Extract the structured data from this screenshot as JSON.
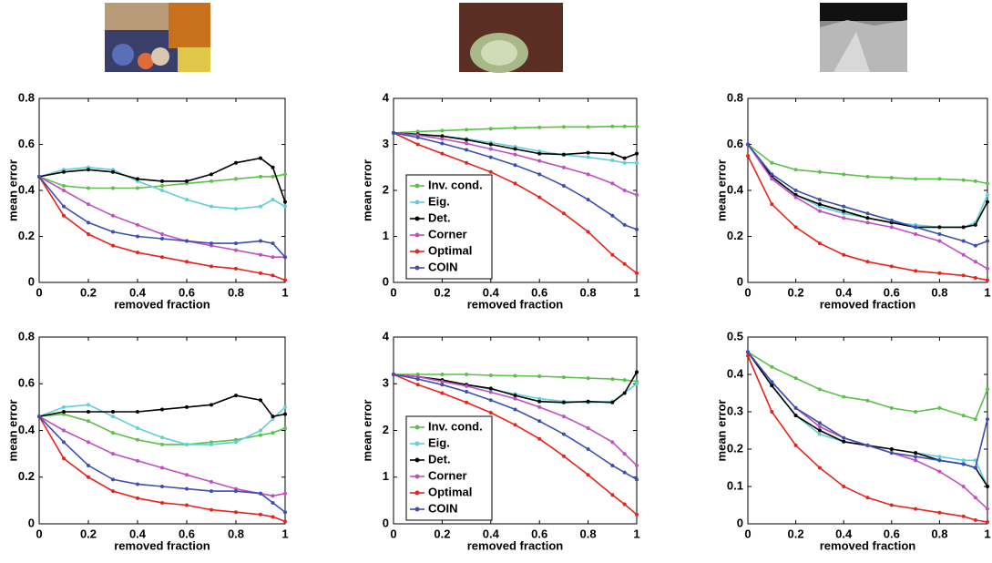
{
  "chart_data": [
    {
      "type": "line",
      "xlabel": "removed fraction",
      "ylabel": "mean error",
      "xlim": [
        0,
        1
      ],
      "xticks": [
        0,
        0.2,
        0.4,
        0.6,
        0.8,
        1
      ],
      "ylim": [
        0,
        0.8
      ],
      "yticks": [
        0,
        0.2,
        0.4,
        0.6,
        0.8
      ],
      "x": [
        0,
        0.1,
        0.2,
        0.3,
        0.4,
        0.5,
        0.6,
        0.7,
        0.8,
        0.9,
        0.95,
        1
      ],
      "series": [
        {
          "color": "#5dc04a",
          "values": [
            0.46,
            0.42,
            0.41,
            0.41,
            0.41,
            0.42,
            0.43,
            0.44,
            0.45,
            0.46,
            0.46,
            0.47
          ]
        },
        {
          "color": "#5fd0d8",
          "values": [
            0.46,
            0.49,
            0.5,
            0.49,
            0.44,
            0.4,
            0.36,
            0.33,
            0.32,
            0.33,
            0.36,
            0.33
          ]
        },
        {
          "color": "#000000",
          "values": [
            0.46,
            0.48,
            0.49,
            0.48,
            0.45,
            0.44,
            0.44,
            0.47,
            0.52,
            0.54,
            0.5,
            0.35
          ]
        },
        {
          "color": "#c04fc0",
          "values": [
            0.46,
            0.4,
            0.34,
            0.29,
            0.25,
            0.21,
            0.18,
            0.16,
            0.14,
            0.12,
            0.11,
            0.11
          ]
        },
        {
          "color": "#e8231b",
          "values": [
            0.46,
            0.29,
            0.21,
            0.16,
            0.13,
            0.11,
            0.09,
            0.07,
            0.06,
            0.04,
            0.03,
            0.01
          ]
        },
        {
          "color": "#3b4fb0",
          "values": [
            0.46,
            0.33,
            0.26,
            0.22,
            0.2,
            0.19,
            0.18,
            0.17,
            0.17,
            0.18,
            0.17,
            0.11
          ]
        }
      ]
    },
    {
      "type": "line",
      "xlabel": "removed fraction",
      "ylabel": "mean error",
      "xlim": [
        0,
        1
      ],
      "xticks": [
        0,
        0.2,
        0.4,
        0.6,
        0.8,
        1
      ],
      "ylim": [
        0,
        4
      ],
      "yticks": [
        0,
        1,
        2,
        3,
        4
      ],
      "legend": "lower left",
      "x": [
        0,
        0.1,
        0.2,
        0.3,
        0.4,
        0.5,
        0.6,
        0.7,
        0.8,
        0.9,
        0.95,
        1
      ],
      "series": [
        {
          "name": "Inv. cond.",
          "color": "#5dc04a",
          "values": [
            3.25,
            3.28,
            3.3,
            3.32,
            3.34,
            3.36,
            3.37,
            3.38,
            3.38,
            3.39,
            3.39,
            3.39
          ]
        },
        {
          "name": "Eig.",
          "color": "#5fd0d8",
          "values": [
            3.25,
            3.22,
            3.18,
            3.12,
            3.04,
            2.95,
            2.85,
            2.77,
            2.72,
            2.65,
            2.6,
            2.6
          ]
        },
        {
          "name": "Det.",
          "color": "#000000",
          "values": [
            3.25,
            3.22,
            3.18,
            3.1,
            3.0,
            2.9,
            2.8,
            2.78,
            2.82,
            2.8,
            2.7,
            2.8
          ]
        },
        {
          "name": "Corner",
          "color": "#c04fc0",
          "values": [
            3.25,
            3.2,
            3.12,
            3.02,
            2.9,
            2.78,
            2.64,
            2.5,
            2.35,
            2.15,
            2.0,
            1.9
          ]
        },
        {
          "name": "Optimal",
          "color": "#e8231b",
          "values": [
            3.25,
            3.0,
            2.8,
            2.6,
            2.4,
            2.15,
            1.85,
            1.5,
            1.1,
            0.6,
            0.4,
            0.2
          ]
        },
        {
          "name": "COIN",
          "color": "#3b4fb0",
          "values": [
            3.25,
            3.15,
            3.02,
            2.88,
            2.72,
            2.55,
            2.35,
            2.1,
            1.8,
            1.45,
            1.25,
            1.15
          ]
        }
      ]
    },
    {
      "type": "line",
      "xlabel": "removed fraction",
      "ylabel": "mean error",
      "xlim": [
        0,
        1
      ],
      "xticks": [
        0,
        0.2,
        0.4,
        0.6,
        0.8,
        1
      ],
      "ylim": [
        0,
        0.8
      ],
      "yticks": [
        0,
        0.2,
        0.4,
        0.6,
        0.8
      ],
      "x": [
        0,
        0.1,
        0.2,
        0.3,
        0.4,
        0.5,
        0.6,
        0.7,
        0.8,
        0.9,
        0.95,
        1
      ],
      "series": [
        {
          "color": "#5dc04a",
          "values": [
            0.6,
            0.52,
            0.49,
            0.48,
            0.47,
            0.46,
            0.455,
            0.45,
            0.45,
            0.445,
            0.44,
            0.43
          ]
        },
        {
          "color": "#5fd0d8",
          "values": [
            0.6,
            0.46,
            0.38,
            0.33,
            0.3,
            0.28,
            0.26,
            0.25,
            0.24,
            0.24,
            0.26,
            0.38
          ]
        },
        {
          "color": "#000000",
          "values": [
            0.6,
            0.46,
            0.38,
            0.34,
            0.31,
            0.28,
            0.26,
            0.24,
            0.24,
            0.24,
            0.25,
            0.35
          ]
        },
        {
          "color": "#c04fc0",
          "values": [
            0.6,
            0.45,
            0.37,
            0.31,
            0.28,
            0.26,
            0.24,
            0.21,
            0.18,
            0.12,
            0.09,
            0.06
          ]
        },
        {
          "color": "#e8231b",
          "values": [
            0.55,
            0.34,
            0.24,
            0.17,
            0.12,
            0.09,
            0.07,
            0.05,
            0.04,
            0.03,
            0.02,
            0.01
          ]
        },
        {
          "color": "#3b4fb0",
          "values": [
            0.6,
            0.47,
            0.4,
            0.36,
            0.33,
            0.3,
            0.27,
            0.24,
            0.21,
            0.18,
            0.16,
            0.18
          ]
        }
      ]
    },
    {
      "type": "line",
      "xlabel": "removed fraction",
      "ylabel": "mean error",
      "xlim": [
        0,
        1
      ],
      "xticks": [
        0,
        0.2,
        0.4,
        0.6,
        0.8,
        1
      ],
      "ylim": [
        0,
        0.8
      ],
      "yticks": [
        0,
        0.2,
        0.4,
        0.6,
        0.8
      ],
      "x": [
        0,
        0.1,
        0.2,
        0.3,
        0.4,
        0.5,
        0.6,
        0.7,
        0.8,
        0.9,
        0.95,
        1
      ],
      "series": [
        {
          "color": "#5dc04a",
          "values": [
            0.46,
            0.47,
            0.44,
            0.39,
            0.36,
            0.34,
            0.34,
            0.35,
            0.36,
            0.38,
            0.39,
            0.41
          ]
        },
        {
          "color": "#5fd0d8",
          "values": [
            0.46,
            0.5,
            0.51,
            0.46,
            0.41,
            0.37,
            0.34,
            0.34,
            0.35,
            0.4,
            0.45,
            0.5
          ]
        },
        {
          "color": "#000000",
          "values": [
            0.46,
            0.48,
            0.48,
            0.48,
            0.48,
            0.49,
            0.5,
            0.51,
            0.55,
            0.53,
            0.46,
            0.47
          ]
        },
        {
          "color": "#c04fc0",
          "values": [
            0.46,
            0.4,
            0.35,
            0.3,
            0.27,
            0.24,
            0.21,
            0.18,
            0.15,
            0.13,
            0.12,
            0.13
          ]
        },
        {
          "color": "#e8231b",
          "values": [
            0.46,
            0.28,
            0.2,
            0.14,
            0.11,
            0.09,
            0.08,
            0.06,
            0.05,
            0.04,
            0.03,
            0.01
          ]
        },
        {
          "color": "#3b4fb0",
          "values": [
            0.46,
            0.35,
            0.25,
            0.19,
            0.17,
            0.16,
            0.15,
            0.14,
            0.14,
            0.13,
            0.09,
            0.05
          ]
        }
      ]
    },
    {
      "type": "line",
      "xlabel": "removed fraction",
      "ylabel": "mean error",
      "xlim": [
        0,
        1
      ],
      "xticks": [
        0,
        0.2,
        0.4,
        0.6,
        0.8,
        1
      ],
      "ylim": [
        0,
        4
      ],
      "yticks": [
        0,
        1,
        2,
        3,
        4
      ],
      "legend": "lower left",
      "x": [
        0,
        0.1,
        0.2,
        0.3,
        0.4,
        0.5,
        0.6,
        0.7,
        0.8,
        0.9,
        0.95,
        1
      ],
      "series": [
        {
          "name": "Inv. cond.",
          "color": "#5dc04a",
          "values": [
            3.2,
            3.2,
            3.2,
            3.2,
            3.18,
            3.17,
            3.16,
            3.14,
            3.12,
            3.1,
            3.08,
            3.05
          ]
        },
        {
          "name": "Eig.",
          "color": "#5fd0d8",
          "values": [
            3.2,
            3.15,
            3.08,
            2.98,
            2.88,
            2.78,
            2.68,
            2.62,
            2.6,
            2.62,
            2.8,
            3.0
          ]
        },
        {
          "name": "Det.",
          "color": "#000000",
          "values": [
            3.2,
            3.15,
            3.08,
            2.98,
            2.9,
            2.75,
            2.62,
            2.6,
            2.62,
            2.6,
            2.8,
            3.25
          ]
        },
        {
          "name": "Corner",
          "color": "#c04fc0",
          "values": [
            3.2,
            3.15,
            3.05,
            2.95,
            2.82,
            2.68,
            2.5,
            2.3,
            2.05,
            1.75,
            1.5,
            1.25
          ]
        },
        {
          "name": "Optimal",
          "color": "#e8231b",
          "values": [
            3.2,
            2.98,
            2.8,
            2.6,
            2.38,
            2.12,
            1.82,
            1.45,
            1.05,
            0.62,
            0.42,
            0.2
          ]
        },
        {
          "name": "COIN",
          "color": "#3b4fb0",
          "values": [
            3.2,
            3.1,
            2.98,
            2.83,
            2.65,
            2.45,
            2.2,
            1.92,
            1.6,
            1.25,
            1.1,
            0.95
          ]
        }
      ]
    },
    {
      "type": "line",
      "xlabel": "removed fraction",
      "ylabel": "mean error",
      "xlim": [
        0,
        1
      ],
      "xticks": [
        0,
        0.2,
        0.4,
        0.6,
        0.8,
        1
      ],
      "ylim": [
        0,
        0.5
      ],
      "yticks": [
        0,
        0.1,
        0.2,
        0.3,
        0.4,
        0.5
      ],
      "x": [
        0,
        0.1,
        0.2,
        0.3,
        0.4,
        0.5,
        0.6,
        0.7,
        0.8,
        0.9,
        0.95,
        1
      ],
      "series": [
        {
          "color": "#5dc04a",
          "values": [
            0.46,
            0.42,
            0.39,
            0.36,
            0.34,
            0.33,
            0.31,
            0.3,
            0.31,
            0.29,
            0.28,
            0.36
          ]
        },
        {
          "color": "#5fd0d8",
          "values": [
            0.46,
            0.37,
            0.29,
            0.24,
            0.22,
            0.21,
            0.2,
            0.19,
            0.18,
            0.17,
            0.17,
            0.1
          ]
        },
        {
          "color": "#000000",
          "values": [
            0.46,
            0.37,
            0.29,
            0.25,
            0.22,
            0.21,
            0.2,
            0.19,
            0.17,
            0.16,
            0.15,
            0.1
          ]
        },
        {
          "color": "#c04fc0",
          "values": [
            0.46,
            0.38,
            0.31,
            0.26,
            0.23,
            0.21,
            0.19,
            0.17,
            0.14,
            0.1,
            0.07,
            0.04
          ]
        },
        {
          "color": "#e8231b",
          "values": [
            0.45,
            0.3,
            0.21,
            0.15,
            0.1,
            0.07,
            0.05,
            0.04,
            0.03,
            0.02,
            0.01,
            0.005
          ]
        },
        {
          "color": "#3b4fb0",
          "values": [
            0.46,
            0.38,
            0.31,
            0.27,
            0.23,
            0.21,
            0.19,
            0.18,
            0.17,
            0.16,
            0.15,
            0.28
          ]
        }
      ]
    }
  ]
}
